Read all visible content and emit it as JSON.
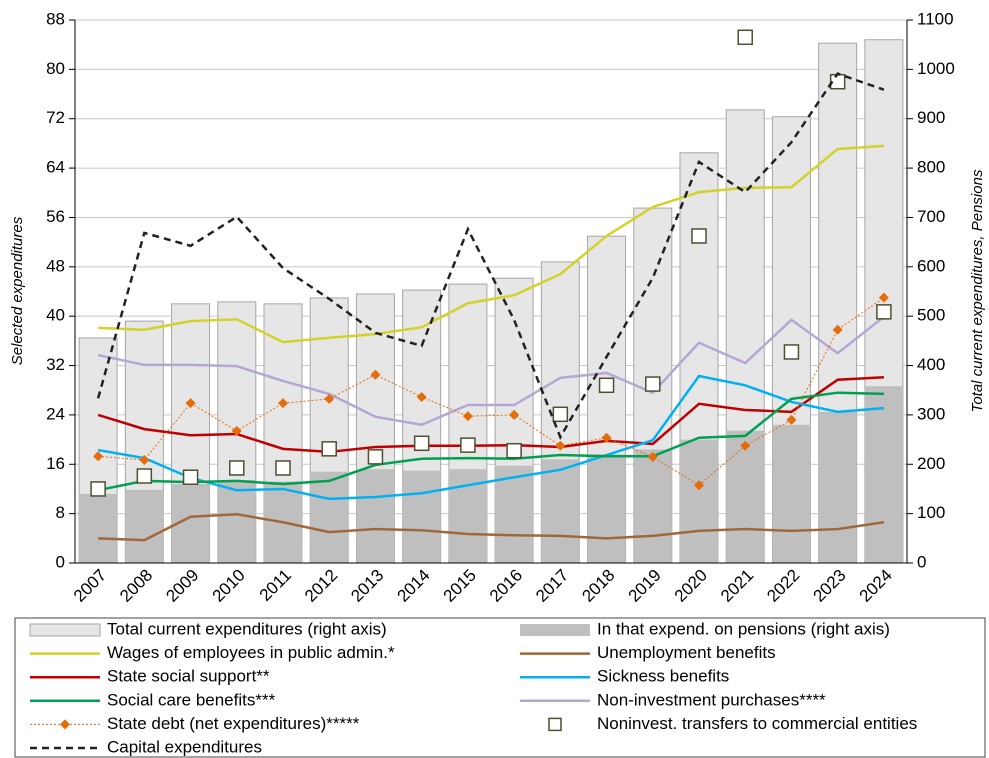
{
  "chart_data": {
    "type": "bar-line",
    "categories": [
      "2007",
      "2008",
      "2009",
      "2010",
      "2011",
      "2012",
      "2013",
      "2014",
      "2015",
      "2016",
      "2017",
      "2018",
      "2019",
      "2020",
      "2021",
      "2022",
      "2023",
      "2024"
    ],
    "y_label": "Selected expenditures",
    "y2_label": "Total current expenditures, Pensions",
    "ylim": [
      0,
      88
    ],
    "yticks": [
      0,
      8,
      16,
      24,
      32,
      40,
      48,
      56,
      64,
      72,
      80,
      88
    ],
    "y2lim": [
      0,
      1100
    ],
    "y2ticks": [
      0,
      100,
      200,
      300,
      400,
      500,
      600,
      700,
      800,
      900,
      1000,
      1100
    ],
    "grid": true,
    "series": [
      {
        "name": "Total current expenditures (right axis)",
        "kind": "bar",
        "axis": "y2",
        "color": "#e6e6e6",
        "edge": "#a6a6a6",
        "values": [
          456,
          490,
          525,
          529,
          525,
          537,
          545,
          553,
          565,
          577,
          610,
          662,
          719,
          831,
          918,
          904,
          1053,
          1060
        ]
      },
      {
        "name": "In that expend. on pensions (right axis)",
        "kind": "bar",
        "axis": "y2",
        "color": "#bfbfbf",
        "values": [
          140,
          148,
          160,
          168,
          165,
          185,
          190,
          187,
          190,
          197,
          210,
          220,
          230,
          250,
          268,
          280,
          306,
          358
        ]
      },
      {
        "name": "Wages of employees in public admin.*",
        "kind": "line",
        "color": "#d2d22a",
        "values": [
          38.1,
          37.8,
          39.2,
          39.5,
          35.8,
          36.5,
          37.1,
          38.2,
          42.1,
          43.4,
          46.8,
          53.0,
          57.7,
          60.1,
          60.8,
          60.9,
          67.1,
          67.6
        ]
      },
      {
        "name": "Unemployment benefits",
        "kind": "line",
        "color": "#a0683a",
        "values": [
          4.0,
          3.7,
          7.5,
          7.9,
          6.6,
          5.0,
          5.5,
          5.3,
          4.7,
          4.5,
          4.4,
          4.0,
          4.4,
          5.2,
          5.5,
          5.2,
          5.5,
          6.6
        ]
      },
      {
        "name": "State social support**",
        "kind": "line",
        "color": "#c00000",
        "values": [
          24.0,
          21.7,
          20.7,
          20.9,
          18.5,
          18.0,
          18.8,
          19.0,
          19.0,
          19.1,
          18.8,
          19.8,
          19.3,
          25.8,
          24.8,
          24.5,
          29.7,
          30.1
        ]
      },
      {
        "name": "Sickness benefits",
        "kind": "line",
        "color": "#00b0f0",
        "values": [
          18.3,
          17.0,
          13.8,
          11.8,
          12.0,
          10.4,
          10.7,
          11.3,
          12.6,
          13.9,
          15.1,
          17.5,
          19.9,
          30.3,
          28.8,
          26.1,
          24.5,
          25.1
        ]
      },
      {
        "name": "Social care benefits***",
        "kind": "line",
        "color": "#00a050",
        "values": [
          11.8,
          13.3,
          13.1,
          13.3,
          12.8,
          13.3,
          15.9,
          16.9,
          17.0,
          16.9,
          17.5,
          17.3,
          17.3,
          20.3,
          20.6,
          26.6,
          27.6,
          27.4
        ]
      },
      {
        "name": "Non-investment purchases****",
        "kind": "line",
        "color": "#b4a7d6",
        "values": [
          33.7,
          32.1,
          32.1,
          31.9,
          29.5,
          27.4,
          23.7,
          22.4,
          25.6,
          25.6,
          30.0,
          30.8,
          27.6,
          35.7,
          32.4,
          39.4,
          34.0,
          39.9
        ]
      },
      {
        "name": "State debt (net expenditures)*****",
        "kind": "line",
        "dash": "dotted",
        "marker": "diamond",
        "color": "#e46c0a",
        "values": [
          17.3,
          16.7,
          25.9,
          21.4,
          25.9,
          26.6,
          30.5,
          26.9,
          23.8,
          24.0,
          19.0,
          20.3,
          17.2,
          12.6,
          19.0,
          23.2,
          37.8,
          43.0
        ]
      },
      {
        "name": "Noninvest. transfers to commercial entities",
        "kind": "marker",
        "marker": "square",
        "color": "#4f4f2f",
        "values": [
          12.0,
          14.1,
          13.9,
          15.4,
          15.4,
          18.5,
          17.2,
          19.4,
          19.1,
          18.2,
          24.1,
          28.8,
          29.0,
          53.0,
          85.2,
          34.2,
          78.0,
          40.7
        ]
      },
      {
        "name": "Capital expenditures",
        "kind": "line",
        "dash": "dashed",
        "color": "#222222",
        "values": [
          26.7,
          53.5,
          51.4,
          56.1,
          47.8,
          42.8,
          37.3,
          35.2,
          54.1,
          39.4,
          20.4,
          33.4,
          46.2,
          65.0,
          60.1,
          68.2,
          79.3,
          76.7
        ]
      }
    ]
  }
}
